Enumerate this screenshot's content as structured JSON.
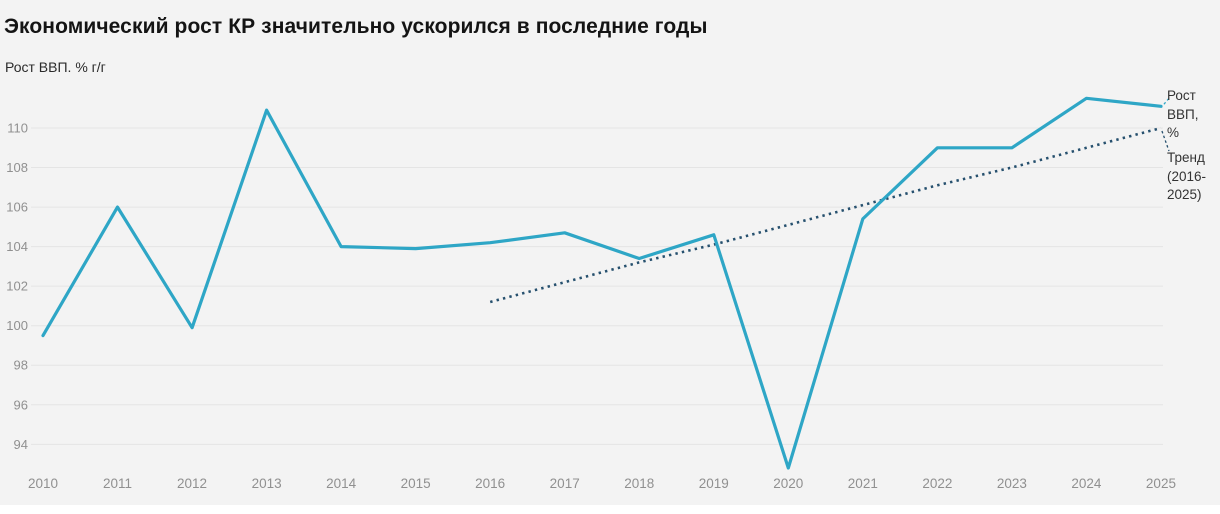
{
  "header": {
    "title": "Экономический рост КР значительно ускорился в последние годы",
    "subtitle": "Рост ВВП. % г/г"
  },
  "legend": {
    "gdp": "Рост ВВП, %",
    "trend": "Тренд (2016-2025)"
  },
  "colors": {
    "background": "#f3f3f3",
    "gdp_line": "#2ea6c6",
    "trend_line": "#26506e",
    "gridline": "#e4e4e4",
    "axis_label": "#909090",
    "title_text": "#141414",
    "legend_text": "#333333"
  },
  "chart_data": {
    "type": "line",
    "title": "Экономический рост КР значительно ускорился в последние годы",
    "subtitle": "Рост ВВП. % г/г",
    "xlabel": "",
    "ylabel": "Рост ВВП. % г/г",
    "x_ticks": [
      2010,
      2011,
      2012,
      2013,
      2014,
      2015,
      2016,
      2017,
      2018,
      2019,
      2020,
      2021,
      2022,
      2023,
      2024,
      2025
    ],
    "y_ticks": [
      94,
      96,
      98,
      100,
      102,
      104,
      106,
      108,
      110
    ],
    "ylim": [
      92.3,
      112.2
    ],
    "grid": "horizontal",
    "legend_position": "right-end-labels",
    "series": [
      {
        "name": "Рост ВВП, %",
        "line_style": "solid",
        "color": "#2ea6c6",
        "x": [
          2010,
          2011,
          2012,
          2013,
          2014,
          2015,
          2016,
          2017,
          2018,
          2019,
          2020,
          2021,
          2022,
          2023,
          2024,
          2025
        ],
        "values": [
          99.5,
          106.0,
          99.9,
          110.9,
          104.0,
          103.9,
          104.2,
          104.7,
          103.4,
          104.6,
          92.8,
          105.4,
          109.0,
          109.0,
          111.5,
          111.1
        ]
      },
      {
        "name": "Тренд (2016-2025)",
        "line_style": "dotted",
        "color": "#26506e",
        "x": [
          2016,
          2017,
          2018,
          2019,
          2020,
          2021,
          2022,
          2023,
          2024,
          2025
        ],
        "values": [
          101.2,
          102.2,
          103.2,
          104.1,
          105.1,
          106.1,
          107.1,
          108.0,
          109.0,
          110.0
        ]
      }
    ]
  }
}
